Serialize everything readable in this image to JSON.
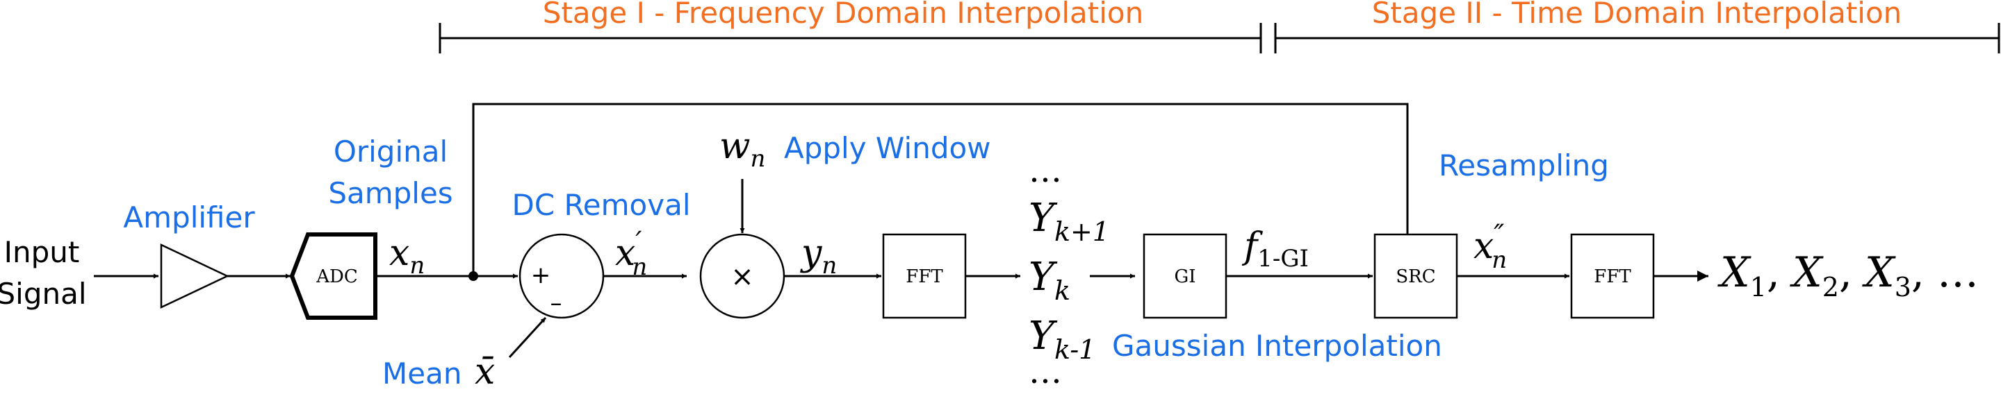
{
  "stages": {
    "stage1": "Stage I - Frequency Domain Interpolation",
    "stage2": "Stage II - Time Domain Interpolation"
  },
  "labels": {
    "input_line1": "Input",
    "input_line2": "Signal",
    "amplifier": "Amplifier",
    "original_line1": "Original",
    "original_line2": "Samples",
    "dc_removal": "DC Removal",
    "mean_label": "Mean",
    "apply_window": "Apply Window",
    "gaussian_interp": "Gaussian Interpolation",
    "resampling": "Resampling"
  },
  "blocks": {
    "adc": "ADC",
    "fft1": "FFT",
    "gi": "GI",
    "src": "SRC",
    "fft2": "FFT"
  },
  "operators": {
    "plus": "+",
    "minus": "–",
    "times": "×"
  },
  "signals": {
    "x_main": "x",
    "x_sub": "n",
    "xp_main": "x",
    "xp_sup": "′",
    "xp_sub": "n",
    "mean_main": "x̄",
    "w_main": "w",
    "w_sub": "n",
    "y_main": "y",
    "y_sub": "n",
    "f_main": "f",
    "f_sub": "1-GI",
    "xpp_main": "x",
    "xpp_sup": "″",
    "xpp_sub": "n"
  },
  "spectrum": {
    "dots_top": "…",
    "ykp1_main": "Y",
    "ykp1_sub": "k+1",
    "yk_main": "Y",
    "yk_sub": "k",
    "ykm1_main": "Y",
    "ykm1_sub": "k-1",
    "dots_bottom": "…"
  },
  "outputs": {
    "x1_main": "X",
    "x1_sub": "1",
    "x2_main": "X",
    "x2_sub": "2",
    "x3_main": "X",
    "x3_sub": "3",
    "sep": ",",
    "tail": "…"
  }
}
